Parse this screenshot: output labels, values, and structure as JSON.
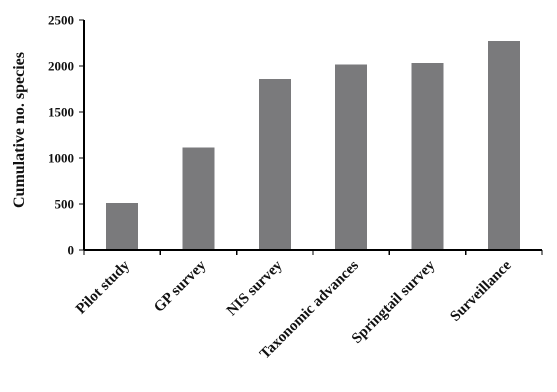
{
  "chart_data": {
    "type": "bar",
    "categories": [
      "Pilot study",
      "GP survey",
      "NIS survey",
      "Taxonomic advances",
      "Springtail survey",
      "Surveillance"
    ],
    "values": [
      510,
      1115,
      1860,
      2015,
      2030,
      2270
    ],
    "title": "",
    "xlabel": "",
    "ylabel": "Cumulative no. species",
    "ylim": [
      0,
      2500
    ],
    "yticks": [
      0,
      500,
      1000,
      1500,
      2000,
      2500
    ],
    "grid": false,
    "legend": "none",
    "bar_color": "#7a7a7c"
  }
}
